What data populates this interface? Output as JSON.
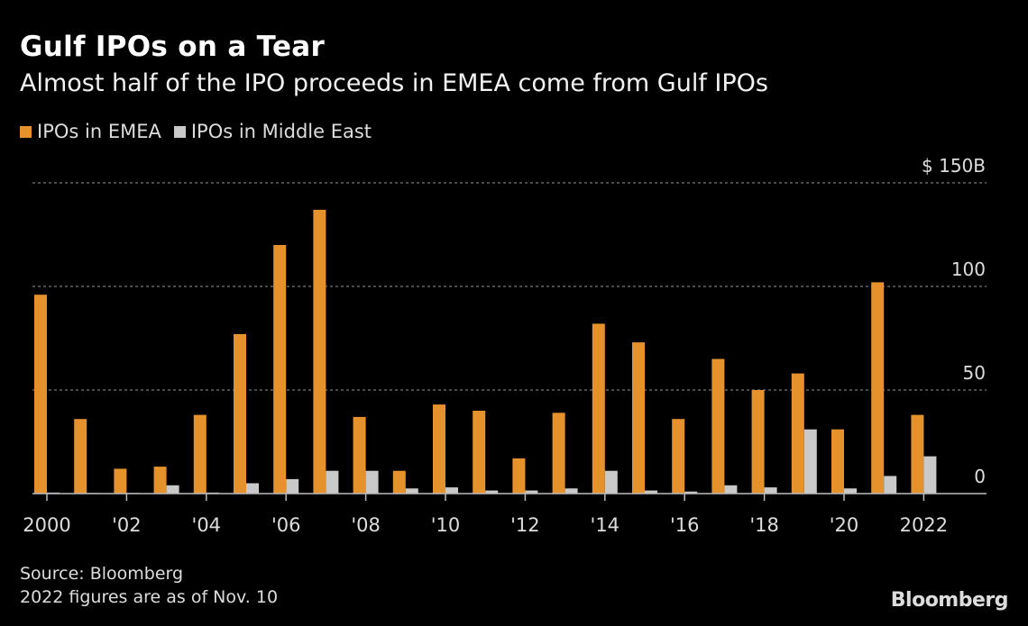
{
  "chart_data": {
    "type": "bar",
    "title": "Gulf IPOs on a Tear",
    "subtitle": "Almost half of the IPO proceeds in EMEA come from Gulf IPOs",
    "categories": [
      "2000",
      "2001",
      "2002",
      "2003",
      "2004",
      "2005",
      "2006",
      "2007",
      "2008",
      "2009",
      "2010",
      "2011",
      "2012",
      "2013",
      "2014",
      "2015",
      "2016",
      "2017",
      "2018",
      "2019",
      "2020",
      "2021",
      "2022"
    ],
    "x_tick_labels": [
      "2000",
      "'02",
      "'04",
      "'06",
      "'08",
      "'10",
      "'12",
      "'14",
      "'16",
      "'18",
      "'20",
      "2022"
    ],
    "x_tick_years": [
      "2000",
      "2002",
      "2004",
      "2006",
      "2008",
      "2010",
      "2012",
      "2014",
      "2016",
      "2018",
      "2020",
      "2022"
    ],
    "series": [
      {
        "name": "IPOs in EMEA",
        "color": "#e6922c",
        "values": [
          96,
          36,
          12,
          13,
          38,
          77,
          120,
          137,
          37,
          11,
          43,
          40,
          17,
          39,
          82,
          73,
          36,
          65,
          50,
          58,
          31,
          102,
          38
        ]
      },
      {
        "name": "IPOs in Middle East",
        "color": "#c9c9c9",
        "values": [
          0.5,
          0.3,
          0.3,
          4,
          0.5,
          5,
          7,
          11,
          11,
          2.5,
          3,
          1.5,
          1.5,
          2.5,
          11,
          1.5,
          1,
          4,
          3,
          31,
          2.5,
          8.5,
          18
        ]
      }
    ],
    "y_ticks": [
      0,
      50,
      100,
      150
    ],
    "y_tick_labels": [
      "0",
      "50",
      "100",
      "$ 150B"
    ],
    "ylim": [
      0,
      150
    ],
    "grid": true,
    "legend": "top-left",
    "source": "Source: Bloomberg",
    "note": "2022 figures are as of Nov. 10",
    "logo": "Bloomberg"
  }
}
